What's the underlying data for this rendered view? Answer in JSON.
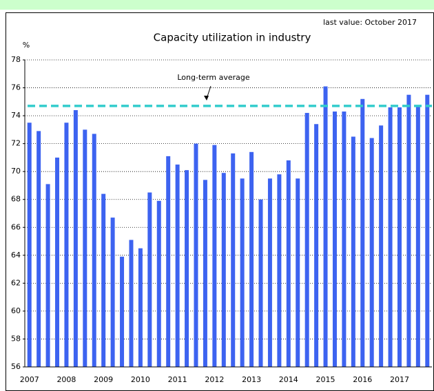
{
  "chart_data": {
    "type": "bar",
    "title": "Capacity utilization in industry",
    "annotation": "last value: October 2017",
    "y_label": "%",
    "average_label": "Long-term average",
    "average": 74.7,
    "average_color": "#33cccc",
    "color": "#3d63f0",
    "categories": [
      "2007",
      null,
      null,
      null,
      "2008",
      null,
      null,
      null,
      "2009",
      null,
      null,
      null,
      "2010",
      null,
      null,
      null,
      "2011",
      null,
      null,
      null,
      "2012",
      null,
      null,
      null,
      "2013",
      null,
      null,
      null,
      "2014",
      null,
      null,
      null,
      "2015",
      null,
      null,
      null,
      "2016",
      null,
      null,
      null,
      "2017",
      null,
      null,
      null
    ],
    "values": [
      73.5,
      72.9,
      69.1,
      71.0,
      73.5,
      74.4,
      73.0,
      72.7,
      68.4,
      66.7,
      63.9,
      65.1,
      64.5,
      68.5,
      67.9,
      71.1,
      70.5,
      70.1,
      72.0,
      69.4,
      71.9,
      69.9,
      71.3,
      69.5,
      71.4,
      68.0,
      69.5,
      69.8,
      70.8,
      69.5,
      74.2,
      73.4,
      76.1,
      74.3,
      74.3,
      72.5,
      75.2,
      72.4,
      73.3,
      74.6,
      74.6,
      75.5,
      74.7,
      75.5
    ],
    "ylim": [
      56,
      78
    ],
    "yticks": [
      56,
      58,
      60,
      62,
      64,
      66,
      68,
      70,
      72,
      74,
      76,
      78
    ],
    "grid": true
  }
}
